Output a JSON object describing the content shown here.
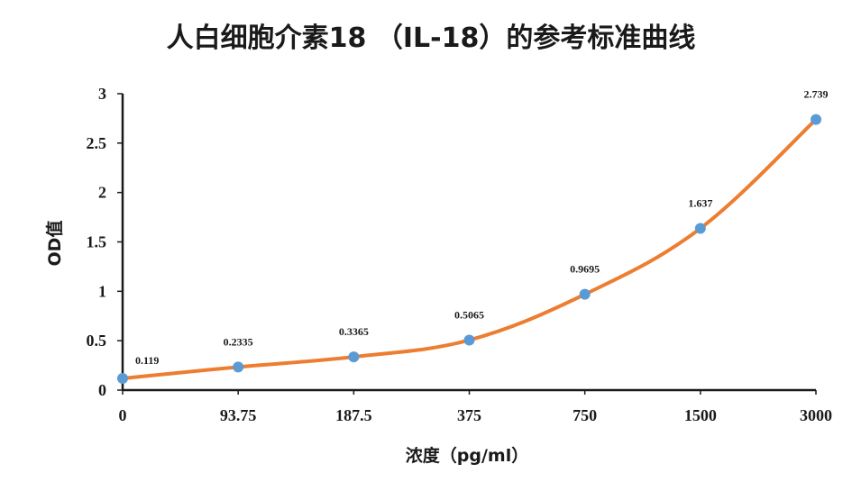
{
  "chart_data": {
    "type": "line",
    "title": "人白细胞介素18 （IL-18）的参考标准曲线",
    "xlabel": "浓度（pg/ml）",
    "ylabel": "OD值",
    "categories": [
      "0",
      "93.75",
      "187.5",
      "375",
      "750",
      "1500",
      "3000"
    ],
    "series": [
      {
        "values": [
          0.119,
          0.2335,
          0.3365,
          0.5065,
          0.9695,
          1.637,
          2.739
        ],
        "labels": [
          "0.119",
          "0.2335",
          "0.3365",
          "0.5065",
          "0.9695",
          "1.637",
          "2.739"
        ]
      }
    ],
    "y_ticks": [
      "0",
      "0.5",
      "1",
      "1.5",
      "2",
      "2.5",
      "3"
    ],
    "ylim": [
      0,
      3
    ],
    "grid": false,
    "legend": "none",
    "colors": {
      "line": "#ED7D31",
      "marker": "#5B9BD5"
    }
  }
}
